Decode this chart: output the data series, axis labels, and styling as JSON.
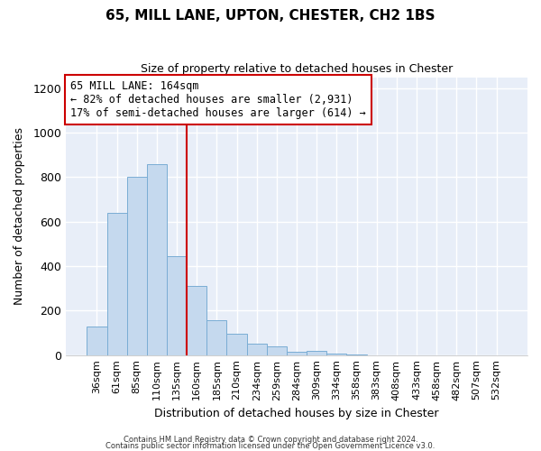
{
  "title": "65, MILL LANE, UPTON, CHESTER, CH2 1BS",
  "subtitle": "Size of property relative to detached houses in Chester",
  "xlabel": "Distribution of detached houses by size in Chester",
  "ylabel": "Number of detached properties",
  "bar_color": "#c5d9ee",
  "bar_edge_color": "#7aadd4",
  "vline_color": "#cc0000",
  "vline_x_index": 5,
  "categories": [
    "36sqm",
    "61sqm",
    "85sqm",
    "110sqm",
    "135sqm",
    "160sqm",
    "185sqm",
    "210sqm",
    "234sqm",
    "259sqm",
    "284sqm",
    "309sqm",
    "334sqm",
    "358sqm",
    "383sqm",
    "408sqm",
    "433sqm",
    "458sqm",
    "482sqm",
    "507sqm",
    "532sqm"
  ],
  "values": [
    130,
    640,
    800,
    860,
    445,
    310,
    155,
    95,
    50,
    40,
    15,
    20,
    5,
    2,
    0,
    0,
    0,
    0,
    0,
    0,
    0
  ],
  "ylim": [
    0,
    1250
  ],
  "yticks": [
    0,
    200,
    400,
    600,
    800,
    1000,
    1200
  ],
  "annotation_title": "65 MILL LANE: 164sqm",
  "annotation_line1": "← 82% of detached houses are smaller (2,931)",
  "annotation_line2": "17% of semi-detached houses are larger (614) →",
  "annotation_box_facecolor": "#ffffff",
  "annotation_box_edgecolor": "#cc0000",
  "footer_line1": "Contains HM Land Registry data © Crown copyright and database right 2024.",
  "footer_line2": "Contains public sector information licensed under the Open Government Licence v3.0.",
  "bg_color": "#ffffff",
  "plot_bg_color": "#e8eef8",
  "grid_color": "#ffffff",
  "spine_color": "#bbbbbb"
}
